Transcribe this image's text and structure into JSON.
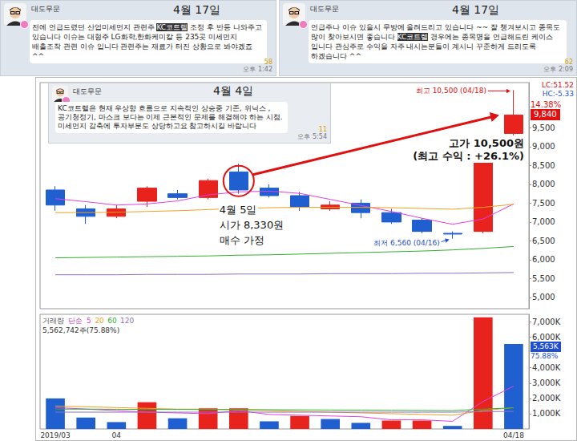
{
  "chart_data": [
    {
      "type": "candlestick",
      "categories": [
        "2019/03",
        null,
        "04",
        null,
        null,
        null,
        null,
        null,
        null,
        null,
        null,
        null,
        null,
        null,
        null,
        "04/18"
      ],
      "series": [
        {
          "type": "candlestick",
          "open": [
            7850,
            7350,
            7150,
            7550,
            7750,
            7650,
            8330,
            7900,
            7700,
            7350,
            7500,
            7250,
            7050,
            6700,
            6750,
            9350
          ],
          "close": [
            7450,
            7150,
            7350,
            7900,
            7650,
            8100,
            7850,
            7700,
            7400,
            7450,
            7250,
            7000,
            6750,
            6680,
            8600,
            9840
          ],
          "low": [
            7300,
            6950,
            7100,
            7400,
            7600,
            7600,
            7750,
            7650,
            7300,
            7300,
            7100,
            6950,
            6700,
            6560,
            6700,
            9300
          ],
          "high": [
            7950,
            7450,
            7450,
            7950,
            7850,
            8150,
            8550,
            8000,
            7800,
            7550,
            7600,
            7350,
            7100,
            6750,
            8600,
            10500
          ],
          "colors": [
            "#1f5fd0",
            "#1f5fd0",
            "#e8231e",
            "#e8231e",
            "#1f5fd0",
            "#e8231e",
            "#1f5fd0",
            "#1f5fd0",
            "#1f5fd0",
            "#e8231e",
            "#1f5fd0",
            "#1f5fd0",
            "#1f5fd0",
            "#1f5fd0",
            "#e8231e",
            "#e8231e"
          ]
        },
        {
          "name": "5",
          "type": "line",
          "color": "#e040e0",
          "values": [
            7620,
            7540,
            7450,
            7480,
            7560,
            7720,
            7800,
            7820,
            7760,
            7600,
            7440,
            7280,
            7100,
            6940,
            7080,
            7480
          ]
        },
        {
          "name": "20",
          "type": "line",
          "color": "#f0a020",
          "values": [
            7250,
            7250,
            7260,
            7280,
            7300,
            7330,
            7360,
            7380,
            7390,
            7390,
            7390,
            7380,
            7360,
            7340,
            7390,
            7470
          ]
        },
        {
          "name": "60",
          "type": "line",
          "color": "#30b030",
          "values": [
            6050,
            6060,
            6070,
            6080,
            6090,
            6100,
            6120,
            6130,
            6150,
            6170,
            6190,
            6210,
            6230,
            6260,
            6300,
            6350
          ]
        },
        {
          "name": "120",
          "type": "line",
          "color": "#9070c0",
          "values": [
            5600,
            5600,
            5600,
            5610,
            5610,
            5610,
            5620,
            5620,
            5620,
            5630,
            5630,
            5630,
            5640,
            5640,
            5650,
            5660
          ]
        }
      ],
      "ylim": [
        4700,
        10700
      ],
      "yticks": [
        {
          "value": 5000,
          "label": "5,000"
        },
        {
          "value": 5500,
          "label": "5,500"
        },
        {
          "value": 6000,
          "label": "6,000"
        },
        {
          "value": 6500,
          "label": "6,500"
        },
        {
          "value": 7000,
          "label": "7,000"
        },
        {
          "value": 7500,
          "label": "7,500"
        },
        {
          "value": 8000,
          "label": "8,000"
        },
        {
          "value": 8500,
          "label": "8,500"
        },
        {
          "value": 9000,
          "label": "9,000"
        },
        {
          "value": 9500,
          "label": "9,500"
        }
      ],
      "grid": false,
      "tick_labels": "y",
      "last_price": {
        "value": 9840,
        "label": "9,840",
        "change": "14.38%"
      },
      "indicators": [
        "LC:51.52",
        "HC:-5.33"
      ],
      "high_note": "최고 10,500 (04/18)",
      "low_note": "최저 6,560 (04/16)",
      "annotations": [
        "4월 5일",
        "시가 8,330원",
        "매수 가정",
        "고가 10,500원",
        "(최고 수익 : +26.1%)"
      ]
    },
    {
      "type": "bar",
      "title": "거래량",
      "subtitle": "단순",
      "categories": [
        "2019/03",
        null,
        "04",
        null,
        null,
        null,
        null,
        null,
        null,
        null,
        null,
        null,
        null,
        null,
        null,
        "04/18"
      ],
      "series": [
        {
          "type": "bar",
          "values": [
            2000000,
            750000,
            450000,
            1750000,
            700000,
            1350000,
            1350000,
            500000,
            850000,
            650000,
            400000,
            550000,
            550000,
            200000,
            7300000,
            5562742
          ],
          "colors": [
            "#1f5fd0",
            "#1f5fd0",
            "#1f5fd0",
            "#e8231e",
            "#1f5fd0",
            "#e8231e",
            "#e8231e",
            "#1f5fd0",
            "#e8231e",
            "#1f5fd0",
            "#1f5fd0",
            "#e8231e",
            "#e8231e",
            "#1f5fd0",
            "#e8231e",
            "#1f5fd0"
          ]
        },
        {
          "name": "5",
          "type": "line",
          "color": "#e040e0",
          "values": [
            1400000,
            1300000,
            1200000,
            1100000,
            1050000,
            1000000,
            1200000,
            950000,
            900000,
            850000,
            800000,
            600000,
            600000,
            500000,
            1800000,
            2800000
          ]
        },
        {
          "name": "20",
          "type": "line",
          "color": "#f0a020",
          "values": [
            1500000,
            1450000,
            1400000,
            1350000,
            1300000,
            1300000,
            1250000,
            1200000,
            1150000,
            1100000,
            1050000,
            1000000,
            950000,
            900000,
            1200000,
            1400000
          ]
        },
        {
          "name": "60",
          "type": "line",
          "color": "#30b030",
          "values": [
            1300000,
            1300000,
            1290000,
            1280000,
            1280000,
            1270000,
            1270000,
            1260000,
            1250000,
            1240000,
            1230000,
            1220000,
            1210000,
            1200000,
            1300000,
            1380000
          ]
        },
        {
          "name": "120",
          "type": "line",
          "color": "#9070c0",
          "values": [
            1100000,
            1100000,
            1100000,
            1100000,
            1100000,
            1100000,
            1100000,
            1100000,
            1100000,
            1100000,
            1100000,
            1100000,
            1100000,
            1100000,
            1130000,
            1150000
          ]
        }
      ],
      "ylim": [
        0,
        7500000
      ],
      "yticks": [
        {
          "value": 1000000,
          "label": "1,000K"
        },
        {
          "value": 2000000,
          "label": "2,000K"
        },
        {
          "value": 3000000,
          "label": "3,000K"
        },
        {
          "value": 4000000,
          "label": "4,000K"
        },
        {
          "value": 6000000,
          "label": "6,000K"
        },
        {
          "value": 7000000,
          "label": "7,000K"
        }
      ],
      "grid": false,
      "last_volume": {
        "value": 5562742,
        "label": "5,563K",
        "share": "75.88%"
      },
      "note": "5,562,742주(75.88%)"
    }
  ],
  "messages": [
    {
      "author": "대도무문",
      "date": "4월 17일",
      "highlight": "KC코트렐",
      "text": "전에 언급드렸던  산업미세먼지 관련주 KC코트렐 조정 후 반등 나와주고 있습니다  이슈는  대형주 LG화학,한화케미칼 등 235곳 미세먼지 배출조작 관련 이슈 입니다  관련주는 재료가 터진 상황으로 봐야겠죠 ^^",
      "time": "오후 1:42",
      "read": "58"
    },
    {
      "author": "대도무문",
      "date": "4월 17일",
      "highlight": "KC코트렐",
      "text": "언급주나 이슈 있을시 무방에 올려드리고 있습니다 ~~ 잘 챙겨보시고 종목도 많이 찾아보시면 좋습니다 KC코트렐 경우에는 종목명을 언급해드린 케이스 입니다  관심주로 수익을 자주 내시는분들이 계시니 꾸준하게 드리도록 하겠습니다 ^^",
      "time": "오후 2:09",
      "read": "62"
    },
    {
      "author": "대도무문",
      "date": "4월 4일",
      "text": "KC코트렐은 현재 우상향 흐름으로 지속적인 상승중 기존, 위닉스 ,공기청정기, 마스크 보다는 이제 근본적인 문제를 해결해야 하는 시점.  미세먼지 감축에 투자부분도 상당하고요  참고하시길 바랍니다",
      "time": "오후 5:54",
      "read": "11"
    }
  ]
}
